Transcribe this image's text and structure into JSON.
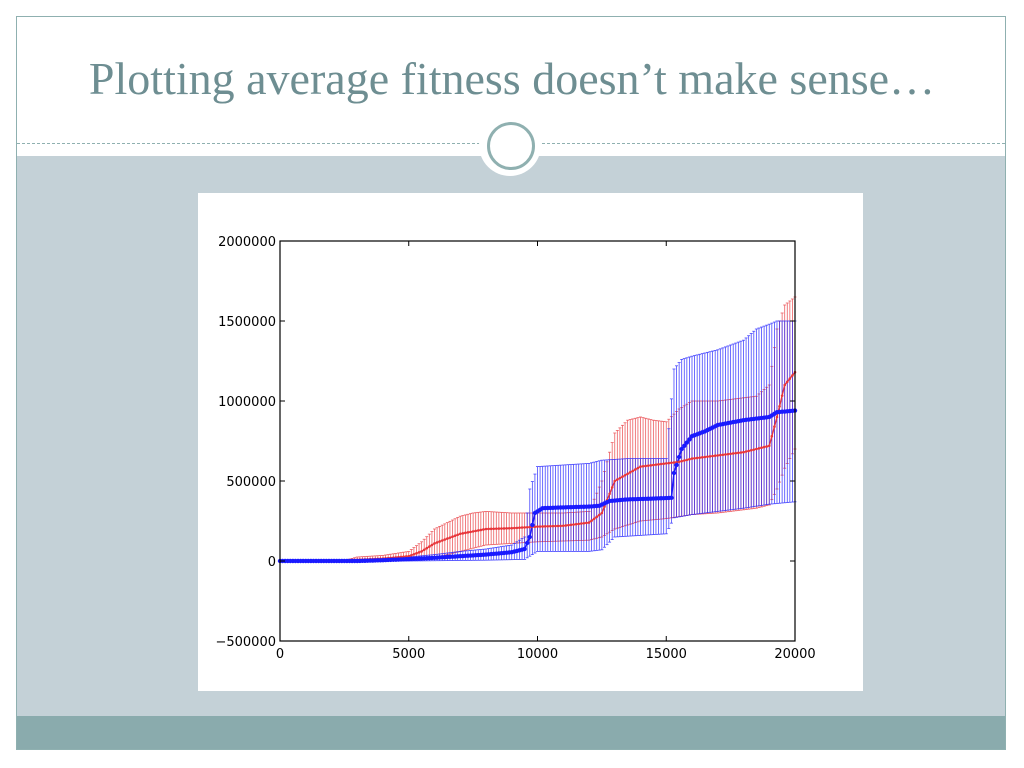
{
  "slide": {
    "title": "Plotting average fitness doesn’t make sense…"
  },
  "colors": {
    "frame": "#8fb0b0",
    "title": "#6e8e92",
    "content_bg": "#c4d1d7",
    "footer": "#8aabad",
    "series_red": "#e8363b",
    "series_blue": "#1a1aff"
  },
  "chart_data": {
    "type": "line",
    "title": "",
    "xlabel": "",
    "ylabel": "",
    "xlim": [
      0,
      20000
    ],
    "ylim": [
      -500000,
      2000000
    ],
    "xticks": [
      0,
      5000,
      10000,
      15000,
      20000
    ],
    "xtick_labels": [
      "0",
      "5000",
      "10000",
      "15000",
      "20000"
    ],
    "yticks": [
      -500000,
      0,
      500000,
      1000000,
      1500000,
      2000000
    ],
    "ytick_labels": [
      "−500000",
      "0",
      "500000",
      "1000000",
      "1500000",
      "2000000"
    ],
    "grid": false,
    "series": [
      {
        "color": "#e8363b",
        "marker": "small dot",
        "points": [
          [
            0,
            0
          ],
          [
            2500,
            2000
          ],
          [
            3000,
            8000
          ],
          [
            4000,
            15000
          ],
          [
            5000,
            30000
          ],
          [
            5500,
            60000
          ],
          [
            6000,
            110000
          ],
          [
            7000,
            170000
          ],
          [
            8000,
            200000
          ],
          [
            9000,
            205000
          ],
          [
            10000,
            215000
          ],
          [
            11000,
            220000
          ],
          [
            12000,
            240000
          ],
          [
            12500,
            300000
          ],
          [
            13000,
            500000
          ],
          [
            14000,
            590000
          ],
          [
            15000,
            610000
          ],
          [
            15500,
            620000
          ],
          [
            16000,
            640000
          ],
          [
            17000,
            660000
          ],
          [
            18000,
            680000
          ],
          [
            18500,
            700000
          ],
          [
            19000,
            720000
          ],
          [
            19300,
            900000
          ],
          [
            19600,
            1100000
          ],
          [
            20000,
            1180000
          ]
        ],
        "err_upper": [
          [
            0,
            0
          ],
          [
            2500,
            3000
          ],
          [
            3000,
            25000
          ],
          [
            4000,
            35000
          ],
          [
            5000,
            60000
          ],
          [
            5500,
            120000
          ],
          [
            6000,
            200000
          ],
          [
            7000,
            280000
          ],
          [
            7500,
            300000
          ],
          [
            8000,
            310000
          ],
          [
            9000,
            300000
          ],
          [
            10000,
            300000
          ],
          [
            11000,
            300000
          ],
          [
            12000,
            310000
          ],
          [
            12500,
            500000
          ],
          [
            13000,
            800000
          ],
          [
            13500,
            880000
          ],
          [
            14000,
            900000
          ],
          [
            14500,
            880000
          ],
          [
            15000,
            870000
          ],
          [
            15500,
            950000
          ],
          [
            16000,
            1000000
          ],
          [
            17000,
            1000000
          ],
          [
            18000,
            1020000
          ],
          [
            18500,
            1030000
          ],
          [
            19000,
            1100000
          ],
          [
            19300,
            1450000
          ],
          [
            19600,
            1600000
          ],
          [
            20000,
            1650000
          ]
        ],
        "err_lower": [
          [
            0,
            0
          ],
          [
            3000,
            0
          ],
          [
            4000,
            0
          ],
          [
            5000,
            5000
          ],
          [
            6000,
            20000
          ],
          [
            7000,
            60000
          ],
          [
            8000,
            100000
          ],
          [
            9000,
            110000
          ],
          [
            10000,
            120000
          ],
          [
            11000,
            125000
          ],
          [
            12000,
            130000
          ],
          [
            12500,
            150000
          ],
          [
            13000,
            200000
          ],
          [
            14000,
            250000
          ],
          [
            15000,
            265000
          ],
          [
            16000,
            290000
          ],
          [
            17000,
            300000
          ],
          [
            18000,
            320000
          ],
          [
            18500,
            330000
          ],
          [
            19000,
            350000
          ],
          [
            19300,
            450000
          ],
          [
            19600,
            580000
          ],
          [
            20000,
            700000
          ]
        ]
      },
      {
        "color": "#1a1aff",
        "marker": "dot",
        "points": [
          [
            0,
            0
          ],
          [
            3000,
            0
          ],
          [
            4000,
            5000
          ],
          [
            5000,
            12000
          ],
          [
            6000,
            20000
          ],
          [
            7000,
            30000
          ],
          [
            8000,
            40000
          ],
          [
            9000,
            55000
          ],
          [
            9500,
            75000
          ],
          [
            9700,
            150000
          ],
          [
            9900,
            300000
          ],
          [
            10200,
            330000
          ],
          [
            11000,
            335000
          ],
          [
            12000,
            340000
          ],
          [
            12400,
            345000
          ],
          [
            12800,
            375000
          ],
          [
            13500,
            385000
          ],
          [
            14500,
            390000
          ],
          [
            15200,
            395000
          ],
          [
            15300,
            550000
          ],
          [
            15600,
            700000
          ],
          [
            16000,
            780000
          ],
          [
            16500,
            810000
          ],
          [
            17000,
            850000
          ],
          [
            18000,
            880000
          ],
          [
            19000,
            900000
          ],
          [
            19300,
            930000
          ],
          [
            20000,
            940000
          ]
        ],
        "err_upper": [
          [
            0,
            0
          ],
          [
            3000,
            2000
          ],
          [
            4000,
            10000
          ],
          [
            5000,
            25000
          ],
          [
            6000,
            40000
          ],
          [
            7000,
            60000
          ],
          [
            8000,
            75000
          ],
          [
            9000,
            100000
          ],
          [
            9500,
            150000
          ],
          [
            9700,
            450000
          ],
          [
            10000,
            590000
          ],
          [
            11000,
            600000
          ],
          [
            12000,
            610000
          ],
          [
            12500,
            630000
          ],
          [
            13500,
            640000
          ],
          [
            15000,
            640000
          ],
          [
            15300,
            1200000
          ],
          [
            15600,
            1260000
          ],
          [
            16000,
            1280000
          ],
          [
            17000,
            1320000
          ],
          [
            18000,
            1380000
          ],
          [
            18500,
            1450000
          ],
          [
            19000,
            1480000
          ],
          [
            19300,
            1500000
          ],
          [
            20000,
            1500000
          ]
        ],
        "err_lower": [
          [
            0,
            0
          ],
          [
            5000,
            0
          ],
          [
            8000,
            5000
          ],
          [
            9500,
            10000
          ],
          [
            9700,
            30000
          ],
          [
            10000,
            60000
          ],
          [
            11000,
            60000
          ],
          [
            12000,
            60000
          ],
          [
            12500,
            70000
          ],
          [
            13000,
            150000
          ],
          [
            14000,
            160000
          ],
          [
            15000,
            170000
          ],
          [
            15300,
            270000
          ],
          [
            16000,
            290000
          ],
          [
            17000,
            310000
          ],
          [
            18000,
            330000
          ],
          [
            19000,
            355000
          ],
          [
            20000,
            370000
          ]
        ]
      }
    ]
  }
}
